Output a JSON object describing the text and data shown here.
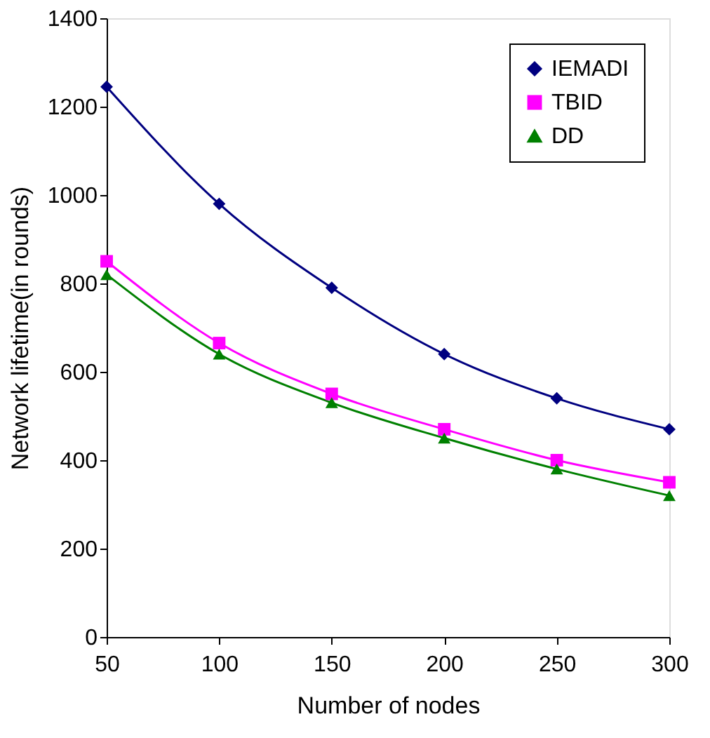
{
  "chart_data": {
    "type": "line",
    "xlabel": "Number of nodes",
    "ylabel": "Network lifetime(in rounds)",
    "x": [
      50,
      100,
      150,
      200,
      250,
      300
    ],
    "xlim": [
      50,
      300
    ],
    "xticks": [
      50,
      100,
      150,
      200,
      250,
      300
    ],
    "ylim": [
      0,
      1400
    ],
    "yticks": [
      0,
      200,
      400,
      600,
      800,
      1000,
      1200,
      1400
    ],
    "grid": false,
    "legend": "top right",
    "series": [
      {
        "name": "IEMADI",
        "color": "#000080",
        "marker": "diamond",
        "values": [
          1245,
          980,
          790,
          640,
          540,
          470
        ]
      },
      {
        "name": "TBID",
        "color": "#ff00ff",
        "marker": "square",
        "values": [
          850,
          665,
          550,
          470,
          400,
          350
        ]
      },
      {
        "name": "DD",
        "color": "#008000",
        "marker": "triangle",
        "values": [
          820,
          640,
          530,
          450,
          380,
          320
        ]
      }
    ]
  }
}
